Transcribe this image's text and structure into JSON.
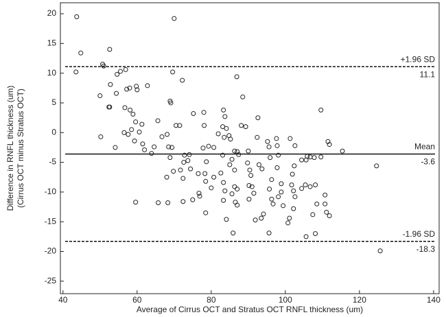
{
  "chart_data": {
    "type": "scatter",
    "xlabel": "Average of Cirrus OCT and Stratus OCT RNFL thickness (um)",
    "ylabel": [
      "Difference in RNFL thickness (um)",
      "(Cirrus OCT minus Stratus OCT)"
    ],
    "xlim": [
      39.3,
      141.5
    ],
    "ylim": [
      -27.1,
      21.85
    ],
    "xticks": [
      40,
      60,
      80,
      100,
      120,
      140
    ],
    "yticks": [
      -25,
      -20,
      -15,
      -10,
      -5,
      0,
      5,
      10,
      15,
      20
    ],
    "color": "#222222",
    "lines": [
      {
        "label": "+1.96 SD",
        "value": 11.1,
        "style": "dashed"
      },
      {
        "label": "Mean",
        "value": -3.6,
        "style": "solid"
      },
      {
        "label": "-1.96 SD",
        "value": -18.3,
        "style": "dashed"
      }
    ],
    "x": [
      43.7,
      44.8,
      43.5,
      70,
      52.6,
      50.7,
      51,
      50,
      50.2,
      52.8,
      52.4,
      52.6,
      54.1,
      54.6,
      55.5,
      54.4,
      56.9,
      57.2,
      58,
      56.7,
      58.1,
      58.9,
      59.8,
      60,
      57.6,
      56.5,
      58.5,
      59.6,
      60.6,
      59.3,
      61.3,
      62.8,
      61.5,
      62,
      63.9,
      65.6,
      66.7,
      64.6,
      59.6,
      65.7,
      68.3,
      68.9,
      69.1,
      69.6,
      72.2,
      70.5,
      71.5,
      68.1,
      68.5,
      69.4,
      68.9,
      68,
      69.8,
      71.7,
      72.6,
      73.7,
      72.8,
      74.1,
      72.4,
      72.4,
      75,
      75.2,
      78.1,
      78,
      74.4,
      76.5,
      76.7,
      76.9,
      78.3,
      78.5,
      78.7,
      77.8,
      79.3,
      78.5,
      80,
      80.7,
      80.7,
      81.9,
      83.1,
      83.3,
      83.7,
      84.1,
      84.8,
      85.2,
      83.5,
      83.1,
      82.6,
      83.3,
      83.7,
      83.3,
      84.1,
      86.9,
      88.5,
      88.1,
      89.3,
      85.6,
      86.3,
      87,
      87.4,
      85,
      86.3,
      86.3,
      87,
      85.6,
      86.5,
      87,
      85.9,
      89.8,
      90,
      90.4,
      90.7,
      91,
      91.5,
      91.9,
      90.2,
      92.4,
      92.6,
      92.9,
      93.7,
      93.5,
      94.1,
      95.2,
      95.6,
      95.9,
      96.3,
      95.7,
      96.3,
      96.7,
      95.6,
      97.6,
      97.8,
      98.1,
      97.8,
      98.9,
      98.9,
      98.1,
      99.4,
      101.3,
      102.6,
      102.4,
      101.9,
      101.7,
      102.2,
      102.6,
      102.2,
      100.7,
      101.1,
      104.4,
      105.6,
      105.4,
      106.7,
      106.7,
      105.9,
      107.8,
      107.4,
      105.6,
      108.1,
      108.5,
      108.1,
      109.6,
      109.6,
      110.7,
      110.7,
      111.1,
      111.5,
      111.9,
      115.4,
      124.6,
      125.6,
      111.9,
      104.4,
      90.2
    ],
    "values": [
      19.5,
      13.4,
      10.2,
      19.2,
      14,
      11.5,
      11.2,
      6.2,
      -0.7,
      8.1,
      4.3,
      4.3,
      -2.5,
      9.8,
      10.3,
      6.6,
      10.6,
      7.3,
      7.5,
      4.2,
      3.8,
      3.1,
      7.8,
      7.2,
      -0.3,
      0,
      0.5,
      1.8,
      0.1,
      -1.4,
      1.4,
      7.9,
      -1.9,
      -2.9,
      -3.5,
      2,
      -0.7,
      -2.4,
      -11.7,
      -11.8,
      -11.8,
      5.3,
      5,
      10.2,
      8.8,
      1.2,
      1.2,
      -0.3,
      -2.4,
      -2.5,
      -4.2,
      -7.5,
      -6.5,
      -6.3,
      -5,
      -4.7,
      -3.8,
      -3.7,
      -7.7,
      -11.6,
      -11.3,
      3.2,
      1.2,
      3.4,
      -6.1,
      -6.9,
      -10.2,
      -10.7,
      -6.9,
      -8.2,
      -4.9,
      -2.6,
      -2.3,
      -13.5,
      -9.3,
      -7.5,
      -2.5,
      -0.2,
      1,
      3.8,
      2.7,
      0.7,
      -0.5,
      -1.1,
      -0.8,
      -3.8,
      -6.8,
      -8.4,
      -9.8,
      -11.4,
      -14.6,
      9.4,
      6,
      1.2,
      1,
      -4.5,
      -3.1,
      -3.2,
      -3.7,
      -5.4,
      -6.3,
      -9.1,
      -9.5,
      -10.3,
      -11.7,
      -12.2,
      -16.9,
      -5.1,
      -3.1,
      -6.3,
      -7.2,
      -9.1,
      -10.2,
      -14.7,
      -11.2,
      -0.8,
      2.5,
      -5.4,
      -6.1,
      -14.4,
      -13.7,
      -1.5,
      -2.4,
      -4.2,
      -7.9,
      -9.5,
      -11.2,
      -12,
      -16.9,
      -1,
      -2.2,
      -3.8,
      -5.9,
      -8.6,
      -10,
      -10.8,
      -12.3,
      -1,
      -2.2,
      -5.6,
      -7,
      -8.8,
      -9.8,
      -10.8,
      -12.8,
      -15.2,
      -14.4,
      -4.6,
      -4.6,
      -8.8,
      -9.1,
      -4.1,
      -4,
      -4.2,
      -13.8,
      -17.5,
      -8.8,
      -12,
      -17,
      -4.1,
      3.8,
      -10.5,
      -12,
      -13.4,
      -1.5,
      -2,
      -3.1,
      -5.6,
      -19.9,
      -14,
      -9.4,
      -8.9
    ]
  }
}
